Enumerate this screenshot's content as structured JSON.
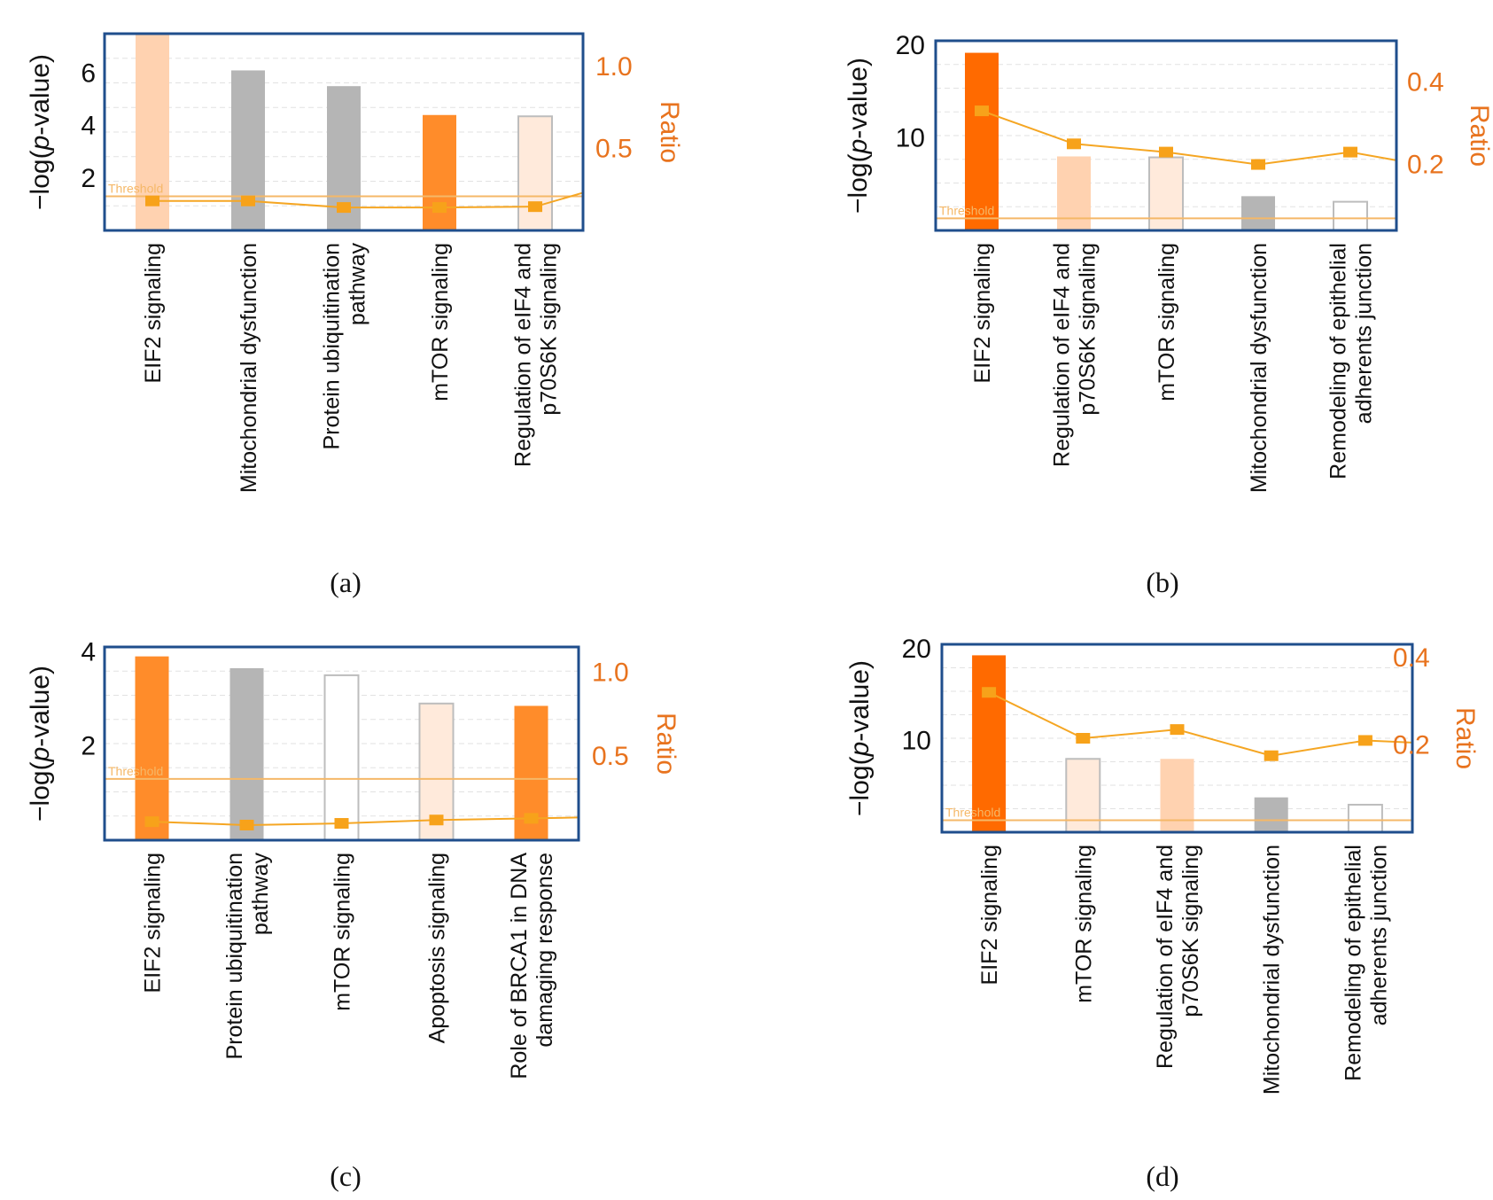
{
  "colors": {
    "frame": "#1f4e8c",
    "ratio_line": "#f5a623",
    "ratio_marker": "#f7a21a",
    "right_axis": "#e8731e",
    "threshold": "#f5b868",
    "grid": "#e2e2e2",
    "bar_dark_orange": "#ff6a00",
    "bar_orange": "#ff8c2a",
    "bar_light_orange": "#ffd2b0",
    "bar_pale_orange": "#ffeadb",
    "bar_gray": "#b5b5b5",
    "bar_white": "#ffffff",
    "bar_outline": "#bdbdbd"
  },
  "chart_data": [
    {
      "type": "bar",
      "panel": "(a)",
      "ylabel_prefix": "−log(",
      "ylabel_italic": "p",
      "ylabel_suffix": "-value)",
      "y2label": "Ratio",
      "ylim": [
        0,
        7.5
      ],
      "yticks": [
        2,
        4,
        6
      ],
      "y2lim": [
        0,
        1.2
      ],
      "y2ticks": [
        0.5,
        1.0
      ],
      "y2tick_labels": [
        "0.5",
        "1.0"
      ],
      "threshold": 1.3,
      "threshold_label": "Threshold",
      "categories": [
        [
          "EIF2 signaling"
        ],
        [
          "Mitochondrial dysfunction"
        ],
        [
          "Protein ubiquitination",
          "pathway"
        ],
        [
          "mTOR signaling"
        ],
        [
          "Regulation of eIF4 and",
          "p70S6K signaling"
        ]
      ],
      "values": [
        7.5,
        6.1,
        5.5,
        4.4,
        4.35
      ],
      "bar_colors": [
        "bar_light_orange",
        "bar_gray",
        "bar_gray",
        "bar_orange",
        "bar_pale_orange"
      ],
      "ratio": [
        0.18,
        0.18,
        0.14,
        0.14,
        0.145
      ],
      "ratio_tail": 0.23
    },
    {
      "type": "bar",
      "panel": "(b)",
      "ylabel_prefix": "−log(",
      "ylabel_italic": "p",
      "ylabel_suffix": "-value)",
      "y2label": "Ratio",
      "ylim": [
        0,
        20.5
      ],
      "yticks": [
        10,
        20
      ],
      "y2lim": [
        0.04,
        0.5
      ],
      "y2ticks": [
        0.2,
        0.4
      ],
      "y2tick_labels": [
        "0.2",
        "0.4"
      ],
      "threshold": 1.3,
      "threshold_label": "Threshold",
      "categories": [
        [
          "EIF2 signaling"
        ],
        [
          "Regulation of eIF4 and",
          "p70S6K signaling"
        ],
        [
          "mTOR signaling"
        ],
        [
          "Mitochondrial dysfunction"
        ],
        [
          "Remodeling of epithelial",
          "adherents junction"
        ]
      ],
      "values": [
        19.2,
        8.0,
        7.9,
        3.7,
        3.1
      ],
      "bar_colors": [
        "bar_dark_orange",
        "bar_light_orange",
        "bar_pale_orange",
        "bar_gray",
        "bar_white"
      ],
      "ratio": [
        0.33,
        0.25,
        0.23,
        0.2,
        0.23
      ],
      "ratio_tail": 0.21
    },
    {
      "type": "bar",
      "panel": "(c)",
      "ylabel_prefix": "−log(",
      "ylabel_italic": "p",
      "ylabel_suffix": "-value)",
      "y2label": "Ratio",
      "ylim": [
        0,
        4.1
      ],
      "yticks": [
        2,
        4
      ],
      "y2lim": [
        0,
        1.15
      ],
      "y2ticks": [
        0.5,
        1.0
      ],
      "y2tick_labels": [
        "0.5",
        "1.0"
      ],
      "threshold": 1.3,
      "threshold_label": "Threshold",
      "categories": [
        [
          "EIF2 signaling"
        ],
        [
          "Protein ubiquitination",
          "pathway"
        ],
        [
          "mTOR signaling"
        ],
        [
          "Apoptosis signaling"
        ],
        [
          "Role of BRCA1 in DNA",
          "damaging response"
        ]
      ],
      "values": [
        3.9,
        3.65,
        3.5,
        2.9,
        2.85
      ],
      "bar_colors": [
        "bar_orange",
        "bar_gray",
        "bar_white",
        "bar_pale_orange",
        "bar_orange"
      ],
      "ratio": [
        0.11,
        0.09,
        0.1,
        0.12,
        0.13
      ],
      "ratio_tail": 0.135
    },
    {
      "type": "bar",
      "panel": "(d)",
      "ylabel_prefix": "−log(",
      "ylabel_italic": "p",
      "ylabel_suffix": "-value)",
      "y2label": "Ratio",
      "ylim": [
        0,
        20.5
      ],
      "yticks": [
        10,
        20
      ],
      "y2lim": [
        0,
        0.43
      ],
      "y2ticks": [
        0.2,
        0.4
      ],
      "y2tick_labels": [
        "0.2",
        "0.4"
      ],
      "threshold": 1.3,
      "threshold_label": "Threshold",
      "categories": [
        [
          "EIF2 signaling"
        ],
        [
          "mTOR signaling"
        ],
        [
          "Regulation of eIF4 and",
          "p70S6K signaling"
        ],
        [
          "Mitochondrial dysfunction"
        ],
        [
          "Remodeling of epithelial",
          "adherents junction"
        ]
      ],
      "values": [
        19.3,
        8.0,
        8.0,
        3.8,
        3.0
      ],
      "bar_colors": [
        "bar_dark_orange",
        "bar_pale_orange",
        "bar_light_orange",
        "bar_gray",
        "bar_white"
      ],
      "ratio": [
        0.32,
        0.215,
        0.235,
        0.175,
        0.21
      ],
      "ratio_tail": 0.205
    }
  ]
}
